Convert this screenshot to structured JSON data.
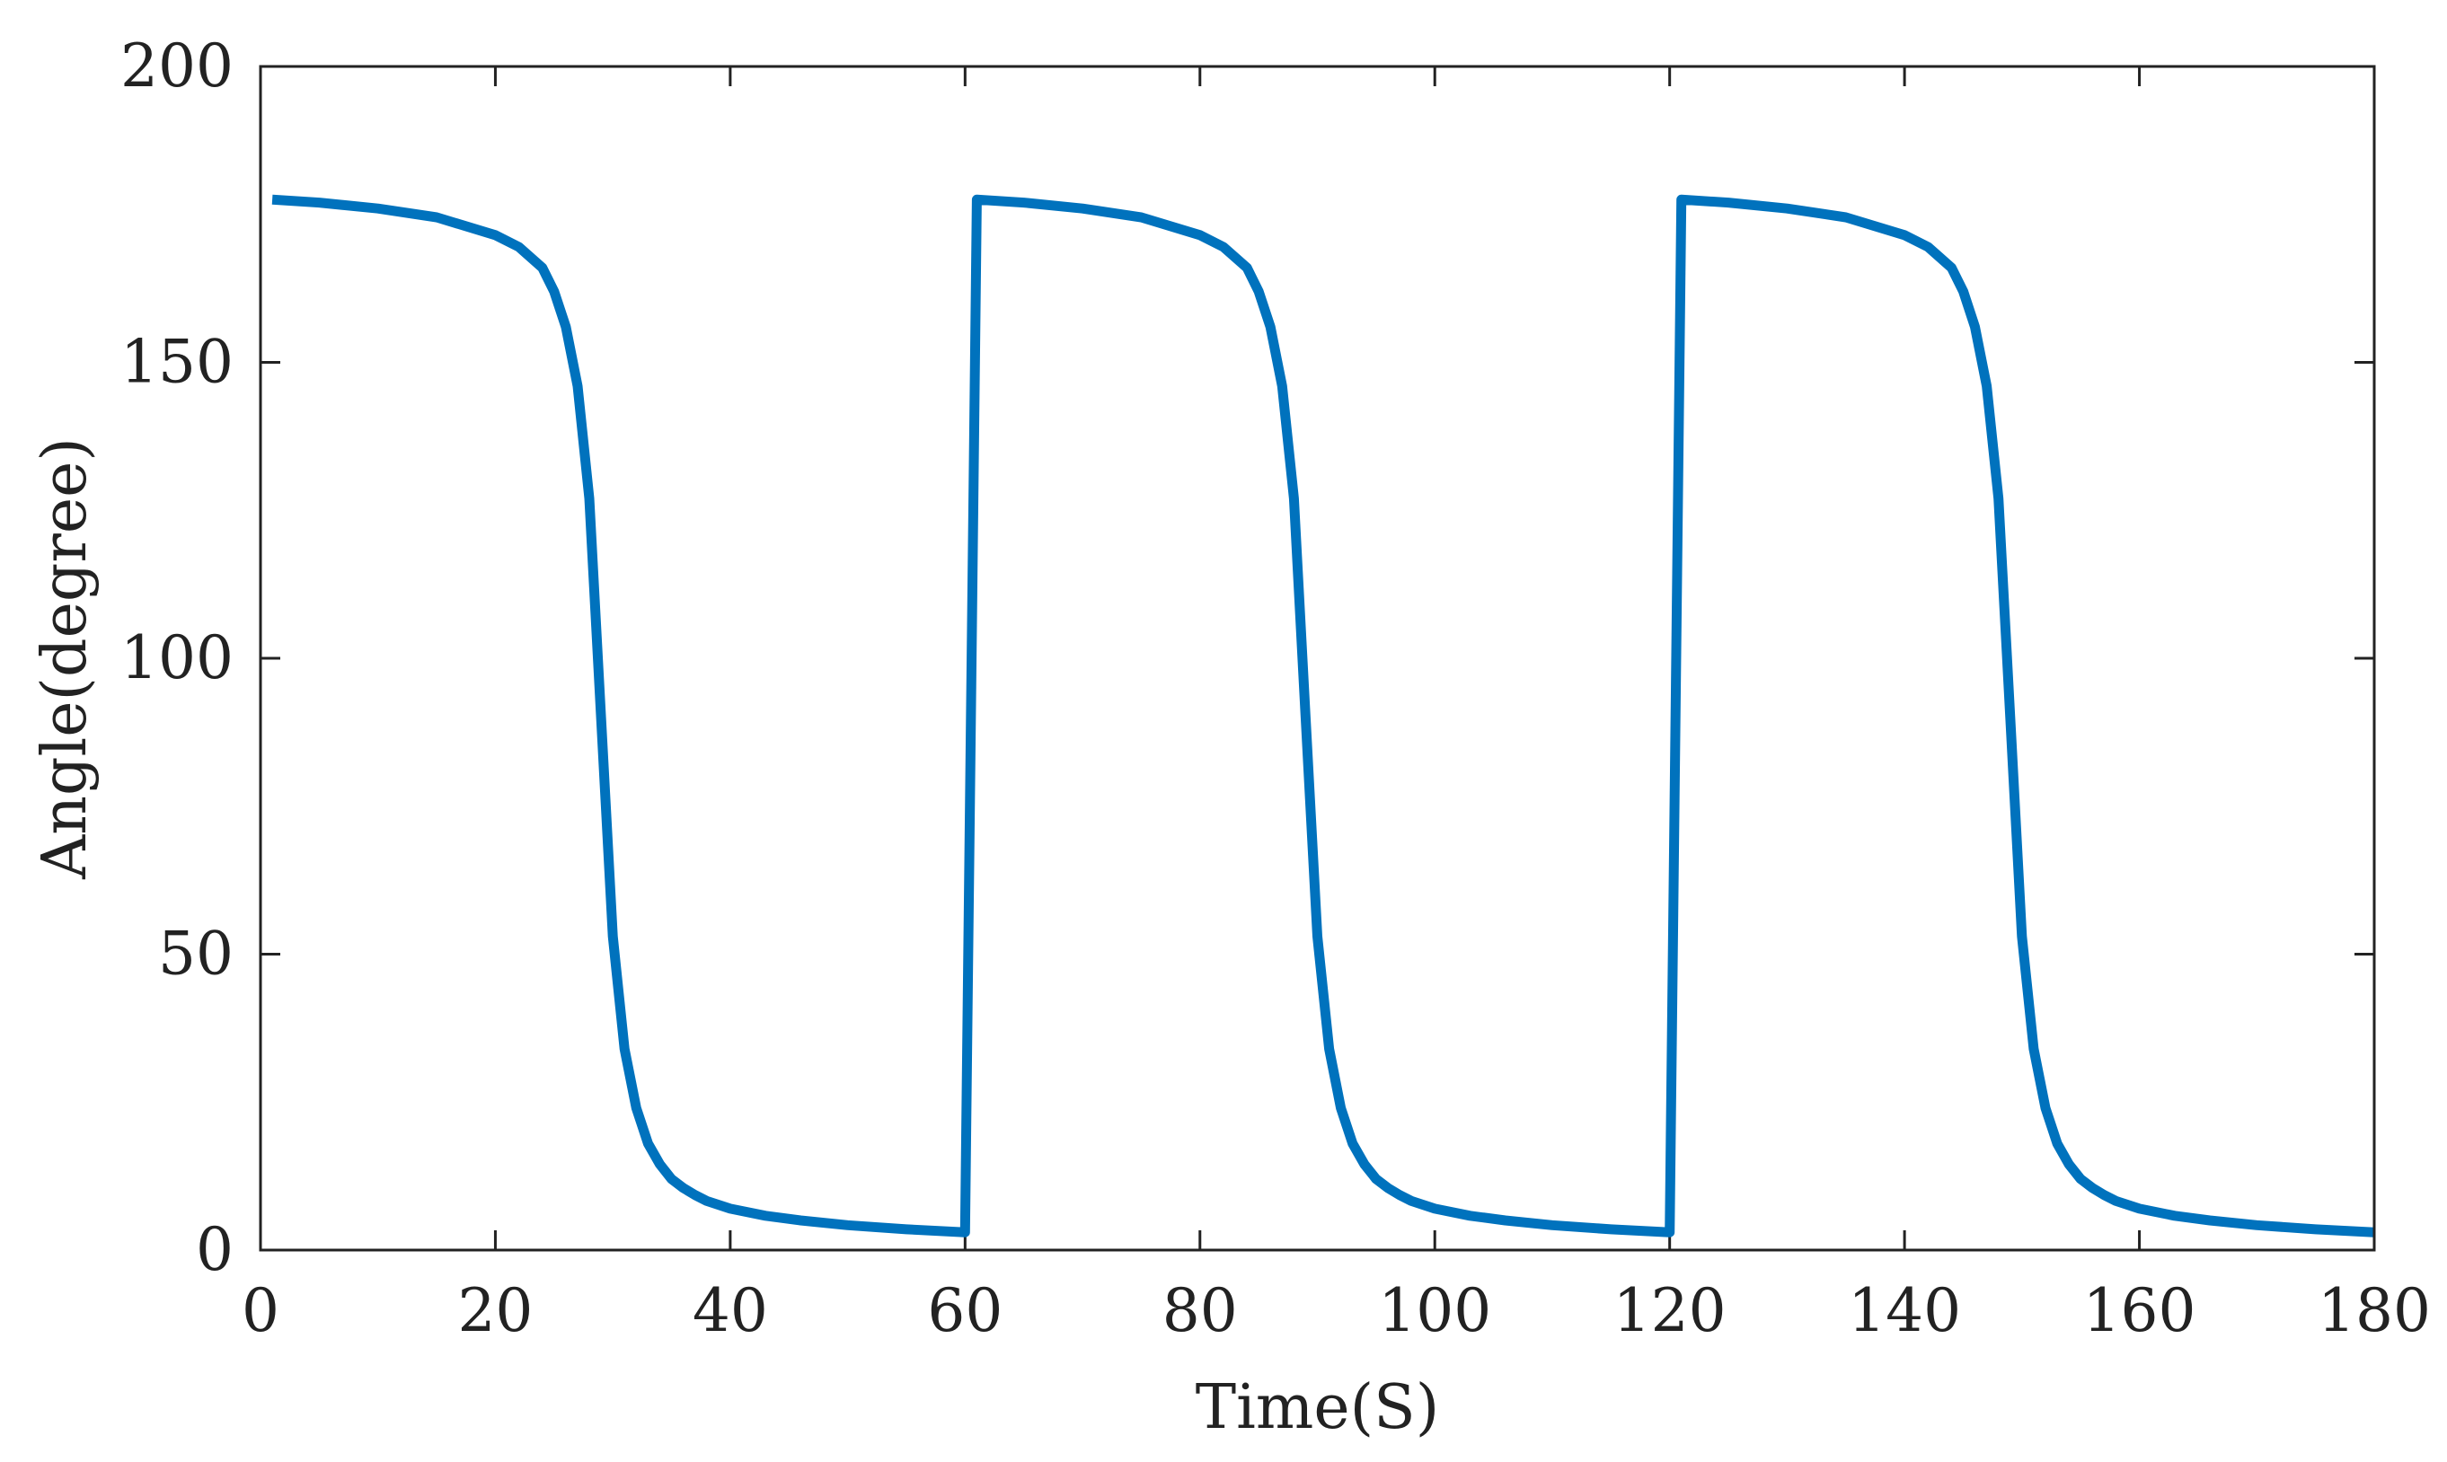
{
  "chart_data": {
    "type": "line",
    "title": "",
    "xlabel": "Time(S)",
    "ylabel": "Angle(degree)",
    "xlim": [
      0,
      180
    ],
    "ylim": [
      0,
      200
    ],
    "xticks": [
      0,
      20,
      40,
      60,
      80,
      100,
      120,
      140,
      160,
      180
    ],
    "yticks": [
      0,
      50,
      100,
      150,
      200
    ],
    "xtick_labels": [
      "0",
      "20",
      "40",
      "60",
      "80",
      "100",
      "120",
      "140",
      "160",
      "180"
    ],
    "ytick_labels": [
      "0",
      "50",
      "100",
      "150",
      "200"
    ],
    "grid": false,
    "legend": "none",
    "series": [
      {
        "color": "#0072BD",
        "x": [
          1,
          5,
          10,
          15,
          20,
          22,
          24,
          25,
          26,
          27,
          28,
          29,
          30,
          31,
          32,
          33,
          34,
          35,
          36,
          37,
          38,
          40,
          43,
          46,
          50,
          55,
          60,
          61,
          65,
          70,
          75,
          80,
          82,
          84,
          85,
          86,
          87,
          88,
          89,
          90,
          91,
          92,
          93,
          94,
          95,
          96,
          97,
          98,
          100,
          103,
          106,
          110,
          115,
          120,
          121,
          125,
          130,
          135,
          140,
          142,
          144,
          145,
          146,
          147,
          148,
          149,
          150,
          151,
          152,
          153,
          154,
          155,
          156,
          157,
          158,
          160,
          163,
          166,
          170,
          175,
          180
        ],
        "y": [
          177.5,
          177,
          176,
          174.5,
          171.5,
          169.5,
          166,
          162,
          156,
          146,
          127,
          90,
          53,
          34,
          24,
          18,
          14.5,
          12,
          10.5,
          9.3,
          8.3,
          7,
          5.8,
          5,
          4.2,
          3.5,
          3,
          177.5,
          177,
          176,
          174.5,
          171.5,
          169.5,
          166,
          162,
          156,
          146,
          127,
          90,
          53,
          34,
          24,
          18,
          14.5,
          12,
          10.5,
          9.3,
          8.3,
          7,
          5.8,
          5,
          4.2,
          3.5,
          3,
          177.5,
          177,
          176,
          174.5,
          171.5,
          169.5,
          166,
          162,
          156,
          146,
          127,
          90,
          53,
          34,
          24,
          18,
          14.5,
          12,
          10.5,
          9.3,
          8.3,
          7,
          5.8,
          5,
          4.2,
          3.5,
          3
        ]
      }
    ]
  }
}
